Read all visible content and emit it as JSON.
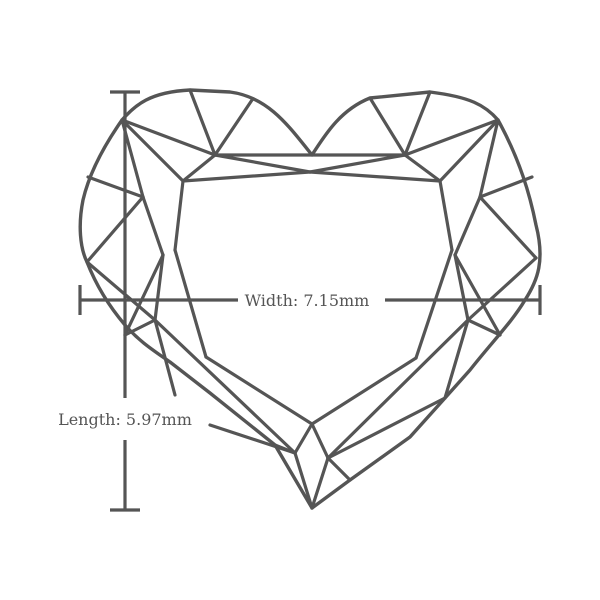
{
  "diagram": {
    "shape": "heart-cut-diamond",
    "stroke_color": "#555555",
    "background_color": "#ffffff",
    "width_label": "Width: 7.15mm",
    "length_label": "Length: 5.97mm"
  }
}
